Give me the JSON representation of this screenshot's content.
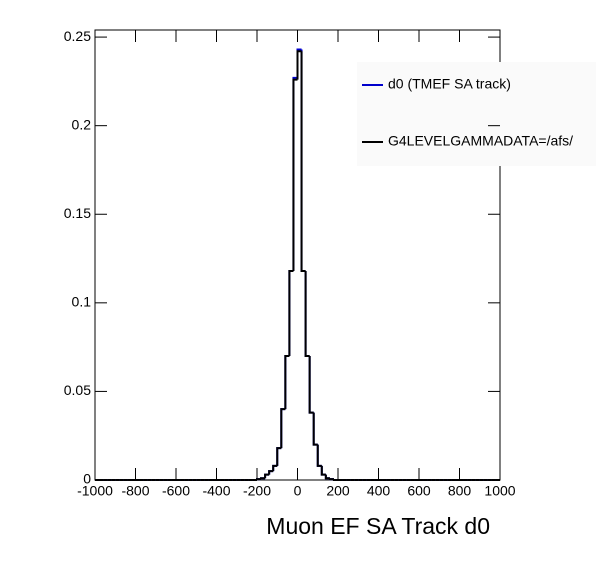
{
  "chart_data": {
    "type": "histogram",
    "x_label": "Muon EF SA Track d0",
    "bins": [
      -1000,
      -980,
      -960,
      -940,
      -920,
      -900,
      -880,
      -860,
      -840,
      -820,
      -800,
      -780,
      -760,
      -740,
      -720,
      -700,
      -680,
      -660,
      -640,
      -620,
      -600,
      -580,
      -560,
      -540,
      -520,
      -500,
      -480,
      -460,
      -440,
      -420,
      -400,
      -380,
      -360,
      -340,
      -320,
      -300,
      -280,
      -260,
      -240,
      -220,
      -200,
      -180,
      -160,
      -140,
      -120,
      -100,
      -80,
      -60,
      -40,
      -20,
      0,
      20,
      40,
      60,
      80,
      100,
      120,
      140,
      160,
      180,
      200,
      220,
      240,
      260,
      280,
      300,
      320,
      340,
      360,
      380,
      400,
      420,
      440,
      460,
      480,
      500,
      520,
      540,
      560,
      580,
      600,
      620,
      640,
      660,
      680,
      700,
      720,
      740,
      760,
      780,
      800,
      820,
      840,
      860,
      880,
      900,
      920,
      940,
      960,
      980,
      1000
    ],
    "series": [
      {
        "name": "d0 (TMEF SA track)",
        "color": "#0000cc",
        "values": [
          0,
          0,
          0,
          0,
          0,
          0,
          0,
          0,
          0,
          0,
          0,
          0,
          0,
          0,
          0,
          0,
          0,
          0,
          0,
          0,
          0,
          0,
          0,
          0,
          0,
          0,
          0,
          0,
          0,
          0,
          0,
          0,
          0,
          0,
          0,
          0,
          0,
          0,
          0,
          0,
          0.0005,
          0.001,
          0.003,
          0.005,
          0.008,
          0.018,
          0.04,
          0.07,
          0.118,
          0.227,
          0.243,
          0.118,
          0.07,
          0.038,
          0.02,
          0.008,
          0.003,
          0.001,
          0.0005,
          0,
          0,
          0,
          0,
          0,
          0,
          0,
          0,
          0,
          0,
          0,
          0,
          0,
          0,
          0,
          0,
          0,
          0,
          0,
          0,
          0,
          0,
          0,
          0,
          0,
          0,
          0,
          0,
          0,
          0,
          0,
          0,
          0,
          0,
          0,
          0,
          0,
          0,
          0,
          0,
          0
        ]
      },
      {
        "name": "G4LEVELGAMMADATA=/afs/",
        "color": "#000000",
        "values": [
          0,
          0,
          0,
          0,
          0,
          0,
          0,
          0,
          0,
          0,
          0,
          0,
          0,
          0,
          0,
          0,
          0,
          0,
          0,
          0,
          0,
          0,
          0,
          0,
          0,
          0,
          0,
          0,
          0,
          0,
          0,
          0,
          0,
          0,
          0,
          0,
          0,
          0,
          0,
          0,
          0.0005,
          0.001,
          0.003,
          0.005,
          0.008,
          0.018,
          0.04,
          0.07,
          0.118,
          0.226,
          0.242,
          0.118,
          0.07,
          0.038,
          0.02,
          0.008,
          0.003,
          0.001,
          0.0005,
          0,
          0,
          0,
          0,
          0,
          0,
          0,
          0,
          0,
          0,
          0,
          0,
          0,
          0,
          0,
          0,
          0,
          0,
          0,
          0,
          0,
          0,
          0,
          0,
          0,
          0,
          0,
          0,
          0,
          0,
          0,
          0,
          0,
          0,
          0,
          0,
          0,
          0,
          0,
          0,
          0
        ]
      }
    ],
    "xlim": [
      -1000,
      1000
    ],
    "ylim": [
      0,
      0.254
    ],
    "xticks": [
      -1000,
      -800,
      -600,
      -400,
      -200,
      0,
      200,
      400,
      600,
      800,
      1000
    ],
    "yticks": [
      0,
      0.05,
      0.1,
      0.15,
      0.2,
      0.25
    ]
  }
}
